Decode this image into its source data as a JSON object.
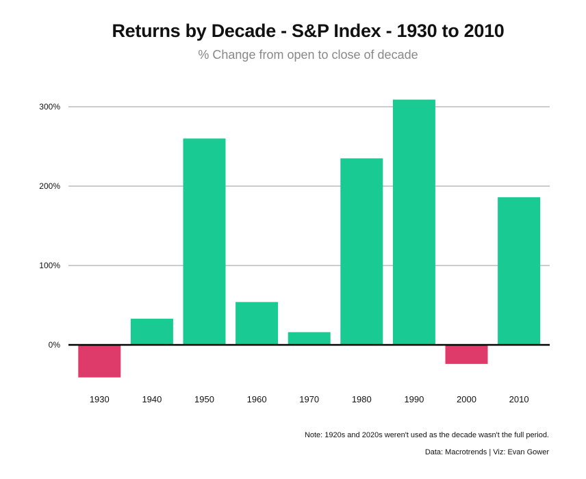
{
  "chart_data": {
    "type": "bar",
    "title": "Returns by Decade - S&P Index - 1930 to 2010",
    "subtitle": "% Change from open to close of decade",
    "categories": [
      "1930",
      "1940",
      "1950",
      "1960",
      "1970",
      "1980",
      "1990",
      "2000",
      "2010"
    ],
    "values": [
      -41,
      33,
      260,
      54,
      16,
      235,
      309,
      -24,
      186
    ],
    "yticks": [
      0,
      100,
      200,
      300
    ],
    "ytick_labels": [
      "0%",
      "100%",
      "200%",
      "300%"
    ],
    "ylim": [
      -60,
      330
    ],
    "grid": true,
    "xlabel": "",
    "ylabel": "",
    "colors": {
      "positive": "#19cb92",
      "negative": "#de3b6b",
      "grid": "#cccccc",
      "zero_line": "#000000"
    }
  },
  "footer": {
    "note": "Note: 1920s and 2020s weren't used as the decade wasn't the full period.",
    "credit": "Data: Macrotrends | Viz: Evan Gower"
  }
}
